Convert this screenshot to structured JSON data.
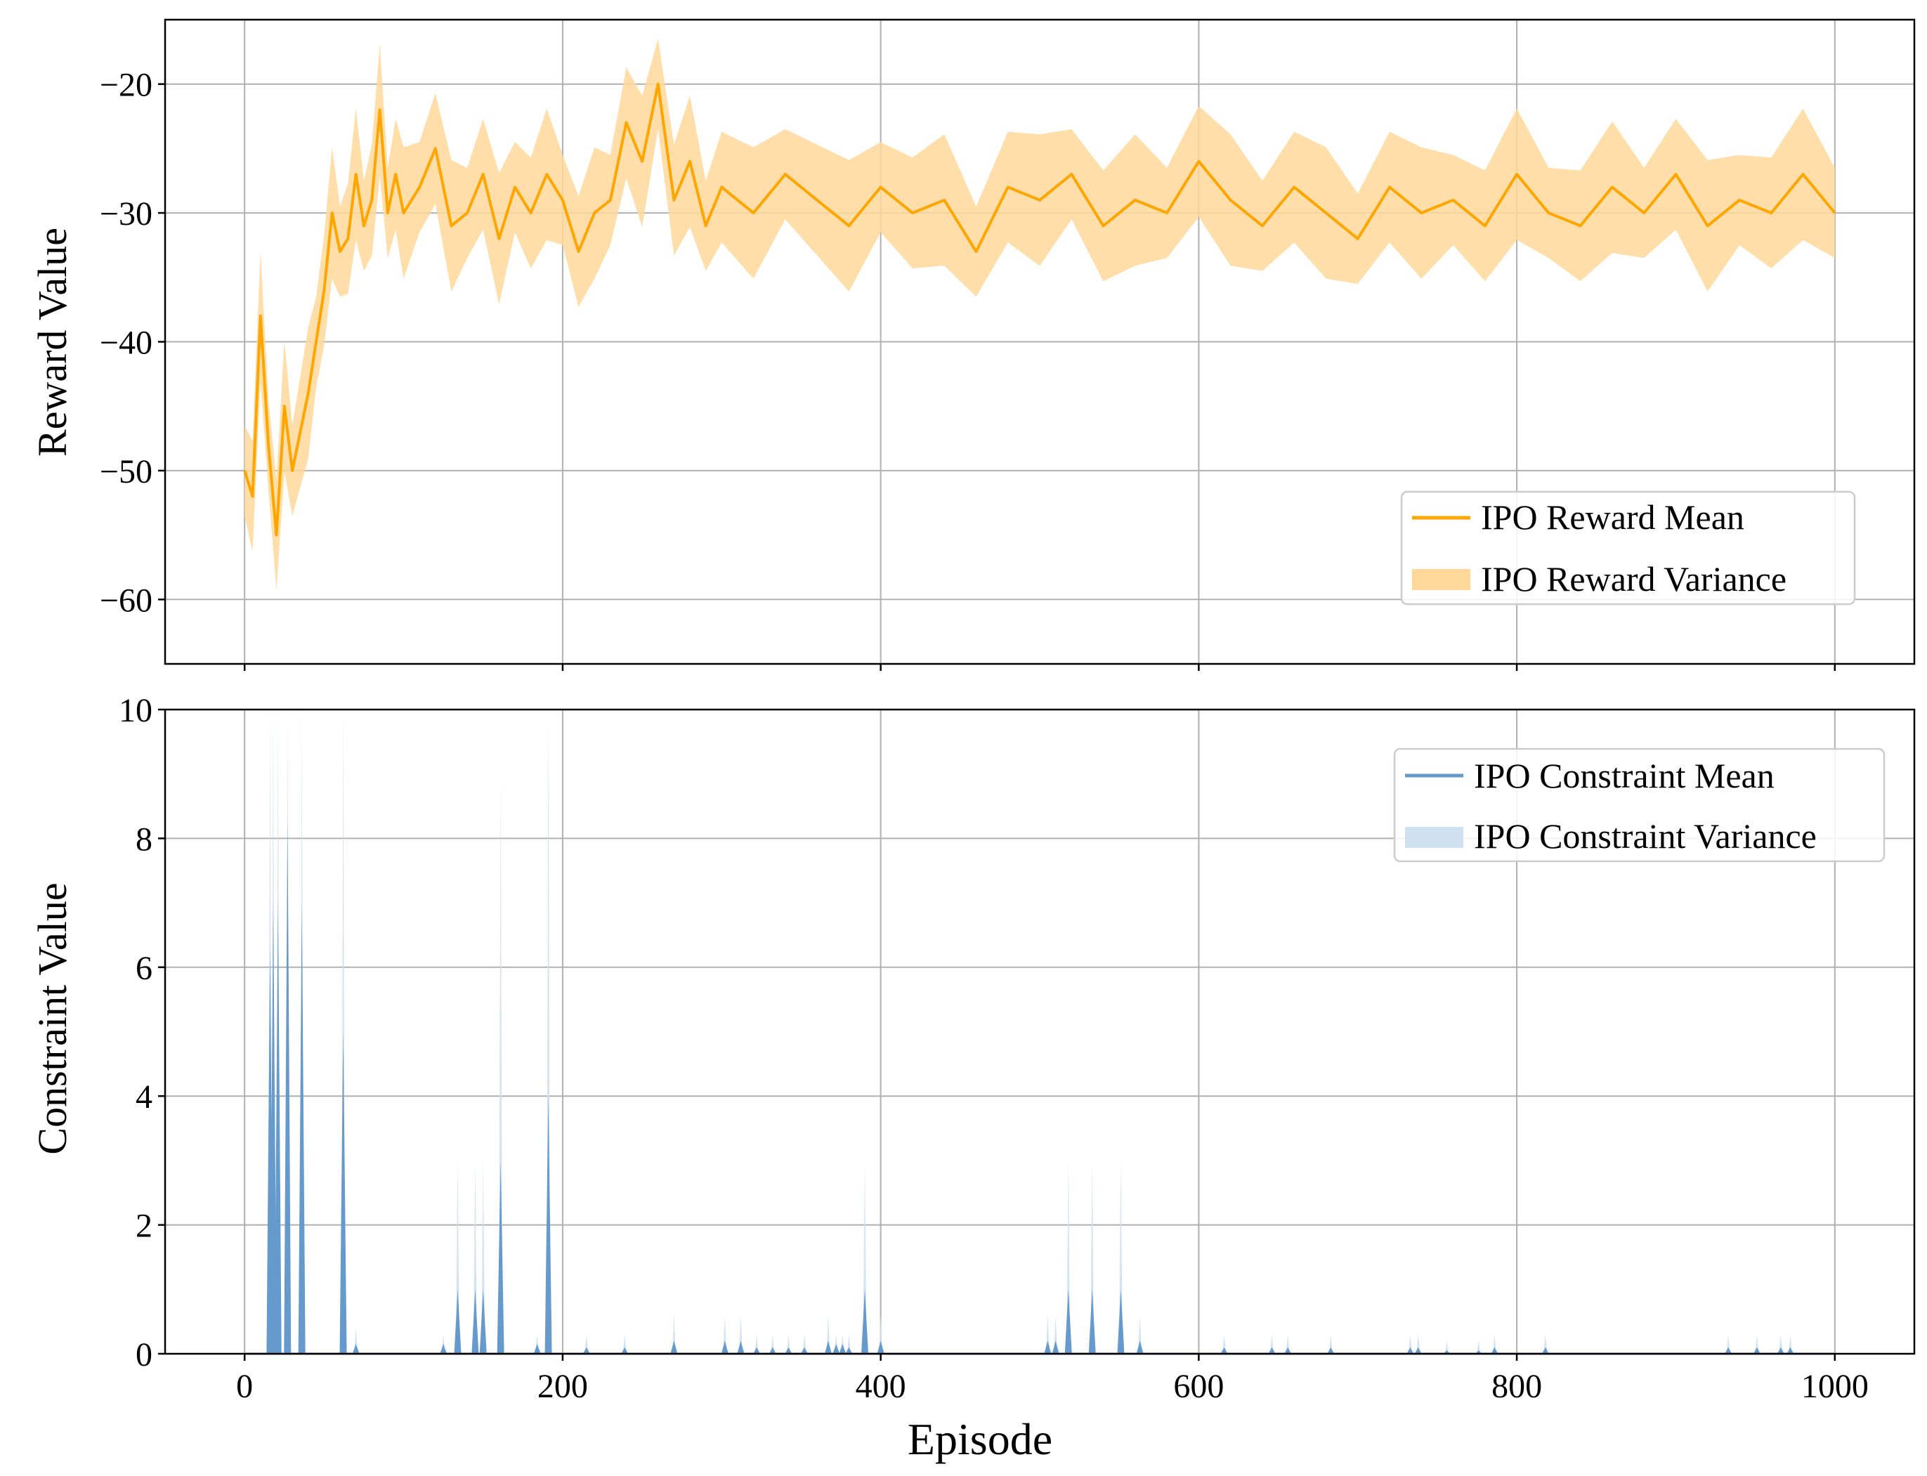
{
  "chart_data": [
    {
      "type": "line",
      "ylabel": "Reward Value",
      "xlim": [
        -50,
        1050
      ],
      "ylim": [
        -65,
        -15
      ],
      "xticks": [
        0,
        200,
        400,
        600,
        800,
        1000
      ],
      "yticks": [
        -60,
        -50,
        -40,
        -30,
        -20
      ],
      "ytick_labels": [
        "−60",
        "−50",
        "−40",
        "−30",
        "−20"
      ],
      "grid": true,
      "legend_position": "lower right",
      "series": [
        {
          "name": "IPO Reward Mean",
          "kind": "line",
          "color": "#FFA500",
          "x": [
            0,
            5,
            10,
            15,
            20,
            25,
            30,
            35,
            40,
            45,
            50,
            55,
            60,
            65,
            70,
            75,
            80,
            85,
            90,
            95,
            100,
            110,
            120,
            130,
            140,
            150,
            160,
            170,
            180,
            190,
            200,
            210,
            220,
            230,
            240,
            250,
            260,
            270,
            280,
            290,
            300,
            320,
            340,
            360,
            380,
            400,
            420,
            440,
            460,
            480,
            500,
            520,
            540,
            560,
            580,
            600,
            620,
            640,
            660,
            680,
            700,
            720,
            740,
            760,
            780,
            800,
            820,
            840,
            860,
            880,
            900,
            920,
            940,
            960,
            980,
            1000
          ],
          "y": [
            -50,
            -52,
            -38,
            -48,
            -55,
            -45,
            -50,
            -47,
            -44,
            -40,
            -36,
            -30,
            -33,
            -32,
            -27,
            -31,
            -29,
            -22,
            -30,
            -27,
            -30,
            -28,
            -25,
            -31,
            -30,
            -27,
            -32,
            -28,
            -30,
            -27,
            -29,
            -33,
            -30,
            -29,
            -23,
            -26,
            -20,
            -29,
            -26,
            -31,
            -28,
            -30,
            -27,
            -29,
            -31,
            -28,
            -30,
            -29,
            -33,
            -28,
            -29,
            -27,
            -31,
            -29,
            -30,
            -26,
            -29,
            -31,
            -28,
            -30,
            -32,
            -28,
            -30,
            -29,
            -31,
            -27,
            -30,
            -31,
            -28,
            -30,
            -27,
            -31,
            -29,
            -30,
            -27,
            -30
          ],
          "band": 3.5
        },
        {
          "name": "IPO Reward Variance",
          "kind": "band",
          "color": "#FFD89A"
        }
      ]
    },
    {
      "type": "bar",
      "xlabel": "Episode",
      "ylabel": "Constraint Value",
      "xlim": [
        -50,
        1050
      ],
      "ylim": [
        0,
        10
      ],
      "xticks": [
        0,
        200,
        400,
        600,
        800,
        1000
      ],
      "xtick_labels": [
        "0",
        "200",
        "400",
        "600",
        "800",
        "1000"
      ],
      "yticks": [
        0,
        2,
        4,
        6,
        8,
        10
      ],
      "ytick_labels": [
        "0",
        "2",
        "4",
        "6",
        "8",
        "10"
      ],
      "grid": true,
      "legend_position": "upper right",
      "series": [
        {
          "name": "IPO Constraint Mean",
          "kind": "spikes",
          "color": "#6699CC",
          "x": [
            16,
            18,
            21,
            27,
            36,
            62,
            70,
            125,
            134,
            145,
            150,
            161,
            184,
            191,
            215,
            239,
            270,
            302,
            312,
            322,
            332,
            342,
            352,
            367,
            372,
            376,
            380,
            390,
            400,
            505,
            510,
            518,
            533,
            551,
            563,
            616,
            646,
            656,
            683,
            733,
            738,
            756,
            776,
            786,
            818,
            933,
            951,
            966,
            972
          ],
          "y": [
            6.35,
            7.0,
            7.0,
            8.35,
            7.0,
            5.0,
            0.15,
            0.15,
            1.0,
            1.0,
            1.0,
            3.0,
            0.15,
            4.0,
            0.1,
            0.1,
            0.2,
            0.2,
            0.2,
            0.1,
            0.1,
            0.1,
            0.1,
            0.2,
            0.15,
            0.15,
            0.1,
            1.0,
            0.2,
            0.2,
            0.2,
            1.0,
            1.0,
            1.0,
            0.2,
            0.1,
            0.1,
            0.1,
            0.1,
            0.1,
            0.1,
            0.05,
            0.05,
            0.1,
            0.1,
            0.1,
            0.1,
            0.1,
            0.1
          ],
          "upper": [
            10,
            10,
            10,
            10,
            10,
            10,
            0.4,
            0.3,
            3.0,
            3.0,
            3.0,
            9.0,
            0.3,
            10,
            0.3,
            0.3,
            0.6,
            0.6,
            0.6,
            0.3,
            0.3,
            0.3,
            0.3,
            0.6,
            0.3,
            0.3,
            0.3,
            3.0,
            0.6,
            0.6,
            0.6,
            3.0,
            3.0,
            3.0,
            0.6,
            0.3,
            0.3,
            0.3,
            0.3,
            0.3,
            0.3,
            0.2,
            0.2,
            0.3,
            0.3,
            0.3,
            0.3,
            0.3,
            0.3
          ]
        },
        {
          "name": "IPO Constraint Variance",
          "kind": "band",
          "color": "#CFE0F1"
        }
      ]
    }
  ]
}
